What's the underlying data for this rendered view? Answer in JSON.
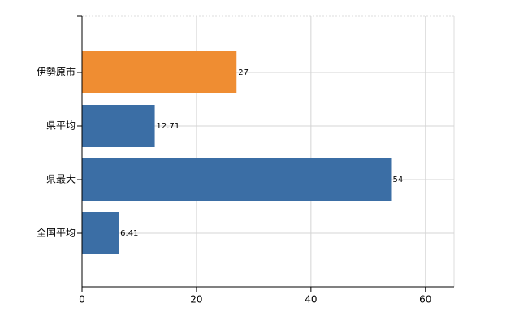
{
  "chart_data": {
    "type": "bar",
    "orientation": "horizontal",
    "categories": [
      "伊勢原市",
      "県平均",
      "県最大",
      "全国平均"
    ],
    "values": [
      27,
      12.71,
      54,
      6.41
    ],
    "colors": [
      "#ef8d32",
      "#3b6ea5",
      "#3b6ea5",
      "#3b6ea5"
    ],
    "xlim": [
      0,
      65
    ],
    "xticks": [
      0,
      20,
      40,
      60
    ],
    "grid": true
  }
}
